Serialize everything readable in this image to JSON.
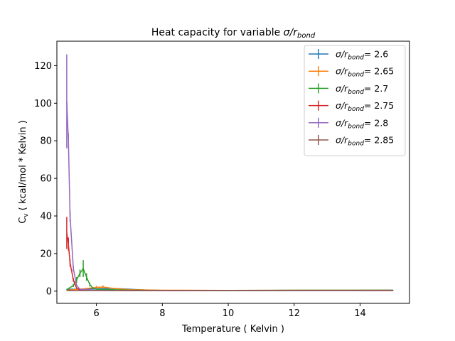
{
  "chart_data": {
    "type": "line",
    "title_main": "Heat capacity for variable ",
    "title_sym": "σ/r",
    "title_sub": "bond",
    "xlabel": "Temperature ( Kelvin )",
    "ylabel_main": "C",
    "ylabel_sub": "v",
    "ylabel_rest": " ( kcal/mol * Kelvin )",
    "xlim": [
      4.8,
      15.5
    ],
    "ylim": [
      -6.5,
      133
    ],
    "xticks": [
      "6",
      "8",
      "10",
      "12",
      "14"
    ],
    "yticks": [
      "0",
      "20",
      "40",
      "60",
      "80",
      "100",
      "120"
    ],
    "legend_position": "top-right",
    "grid": false,
    "series": [
      {
        "name_sym": "σ/r",
        "name_sub": "bond",
        "name_val": "= 2.6",
        "color": "#1f77b4",
        "x": [
          5.1,
          5.5,
          6.0,
          6.5,
          7.0,
          7.5,
          8.0,
          10.0,
          12.0,
          15.0
        ],
        "y": [
          1.0,
          1.0,
          1.3,
          1.5,
          1.0,
          0.6,
          0.4,
          0.4,
          0.4,
          0.5
        ],
        "err": [
          0.1,
          0.1,
          0.2,
          0.2,
          0.1,
          0.1,
          0.1,
          0.1,
          0.1,
          0.1
        ]
      },
      {
        "name_sym": "σ/r",
        "name_sub": "bond",
        "name_val": "= 2.65",
        "color": "#ff7f0e",
        "x": [
          5.1,
          5.5,
          6.0,
          6.2,
          6.5,
          7.0,
          8.0,
          10.0,
          12.0,
          15.0
        ],
        "y": [
          0.5,
          1.0,
          2.0,
          2.2,
          1.5,
          0.8,
          0.5,
          0.4,
          0.5,
          0.5
        ],
        "err": [
          0.1,
          0.2,
          0.8,
          0.8,
          0.3,
          0.2,
          0.1,
          0.1,
          0.1,
          0.1
        ]
      },
      {
        "name_sym": "σ/r",
        "name_sub": "bond",
        "name_val": "= 2.7",
        "color": "#2ca02c",
        "x": [
          5.1,
          5.3,
          5.4,
          5.5,
          5.6,
          5.7,
          5.8,
          5.9,
          6.0,
          6.5,
          7.0,
          8.0,
          10.0,
          12.0,
          15.0
        ],
        "y": [
          0.8,
          3.0,
          6.0,
          9.5,
          12.0,
          7.5,
          3.5,
          1.5,
          1.0,
          0.8,
          0.5,
          0.4,
          0.4,
          0.5,
          0.5
        ],
        "err": [
          0.1,
          0.8,
          1.5,
          2.0,
          4.5,
          2.0,
          1.0,
          0.5,
          0.3,
          0.2,
          0.1,
          0.1,
          0.1,
          0.1,
          0.1
        ]
      },
      {
        "name_sym": "σ/r",
        "name_sub": "bond",
        "name_val": "= 2.75",
        "color": "#d62728",
        "x": [
          5.1,
          5.15,
          5.2,
          5.3,
          5.4,
          5.5,
          6.0,
          7.0,
          8.0,
          10.0,
          12.0,
          15.0
        ],
        "y": [
          31.0,
          25.0,
          15.0,
          6.0,
          1.5,
          0.6,
          0.4,
          0.3,
          0.3,
          0.3,
          0.4,
          0.4
        ],
        "err": [
          8.5,
          3.5,
          2.0,
          1.0,
          0.3,
          0.1,
          0.1,
          0.1,
          0.1,
          0.1,
          0.1,
          0.1
        ]
      },
      {
        "name_sym": "σ/r",
        "name_sub": "bond",
        "name_val": "= 2.8",
        "color": "#9467bd",
        "x": [
          5.1,
          5.15,
          5.2,
          5.3,
          5.4,
          5.5,
          6.0,
          7.0,
          8.0,
          10.0,
          12.0,
          15.0
        ],
        "y": [
          101.0,
          80.0,
          40.0,
          12.0,
          3.0,
          1.0,
          0.5,
          0.3,
          0.3,
          0.3,
          0.3,
          0.3
        ],
        "err": [
          25.0,
          4.0,
          3.0,
          1.5,
          0.5,
          0.2,
          0.1,
          0.1,
          0.1,
          0.1,
          0.1,
          0.1
        ]
      },
      {
        "name_sym": "σ/r",
        "name_sub": "bond",
        "name_val": "= 2.85",
        "color": "#8c564b",
        "x": [
          5.1,
          5.5,
          6.0,
          7.0,
          8.0,
          10.0,
          12.0,
          15.0
        ],
        "y": [
          0.3,
          0.3,
          0.3,
          0.3,
          0.3,
          0.3,
          0.3,
          0.3
        ],
        "err": [
          0.05,
          0.05,
          0.05,
          0.05,
          0.05,
          0.05,
          0.05,
          0.05
        ]
      }
    ]
  }
}
